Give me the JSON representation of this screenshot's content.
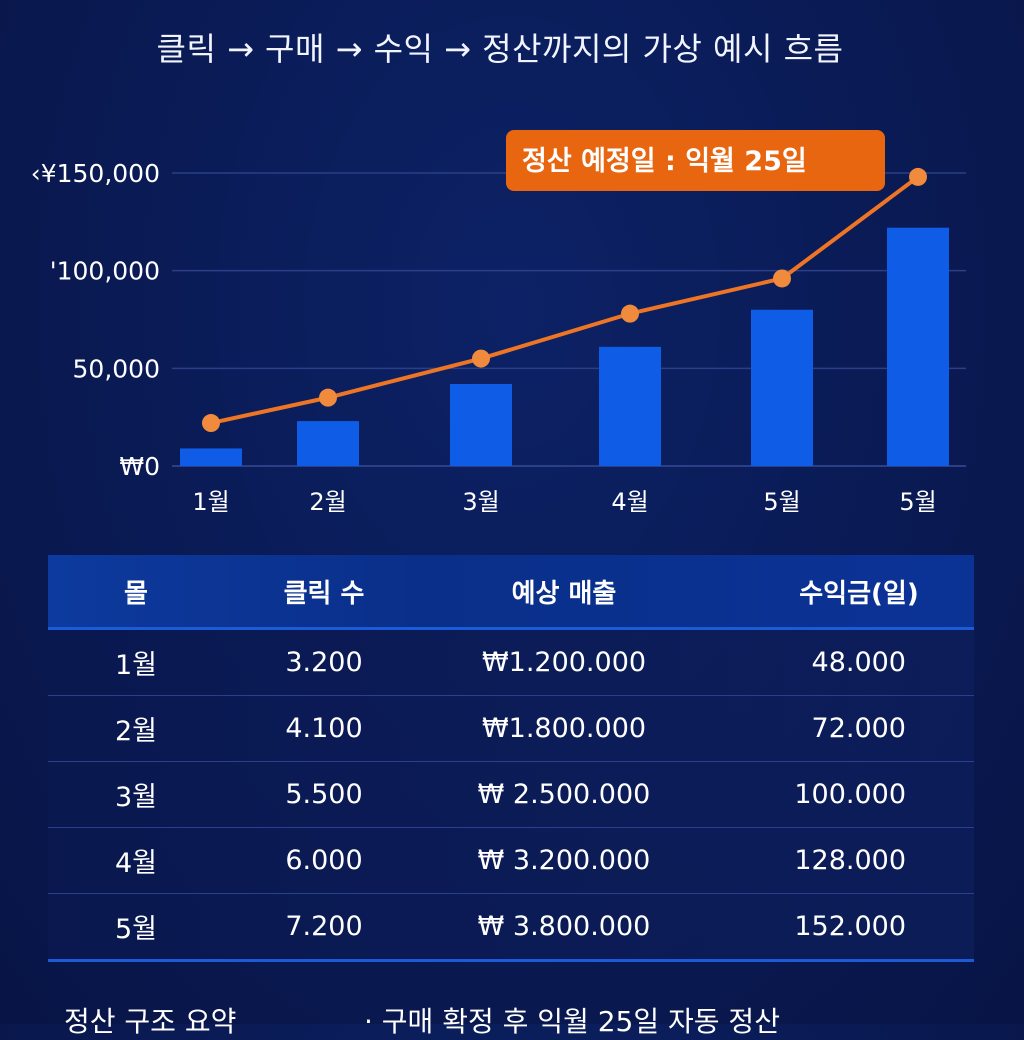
{
  "title": "클릭 → 구매 → 수익 →  정산까지의 가상 예시 흐름",
  "chart_data": {
    "type": "bar",
    "categories": [
      "1월",
      "2월",
      "3월",
      "4월",
      "5월",
      "5월"
    ],
    "series": [
      {
        "name": "bars",
        "type": "bar",
        "values": [
          9000,
          23000,
          42000,
          61000,
          80000,
          122000
        ]
      },
      {
        "name": "line",
        "type": "line",
        "values": [
          22000,
          35000,
          55000,
          78000,
          96000,
          148000
        ]
      }
    ],
    "y_ticks": [
      {
        "value": 150000,
        "label": "‹¥150,000"
      },
      {
        "value": 100000,
        "label": "'100,000"
      },
      {
        "value": 50000,
        "label": "50,000"
      },
      {
        "value": 0,
        "label": "₩0"
      }
    ],
    "ylim": [
      0,
      150000
    ],
    "callout": "정산 예정일 : 익월 25일",
    "colors": {
      "bar": "#0f5ce6",
      "line": "#ee7524",
      "callout": "#e8660f",
      "grid": "#2b3f86"
    }
  },
  "table": {
    "headers": [
      "몰",
      "클릭 수",
      "예상 매출",
      "수익금(일)"
    ],
    "rows": [
      [
        "1월",
        "3.200",
        "₩1.200.000",
        "48.000"
      ],
      [
        "2월",
        "4.100",
        "₩1.800.000",
        "72.000"
      ],
      [
        "3월",
        "5.500",
        "₩ 2.500.000",
        "100.000"
      ],
      [
        "4월",
        "6.000",
        "₩ 3.200.000",
        "128.000"
      ],
      [
        "5월",
        "7.200",
        "₩ 3.800.000",
        "152.000"
      ]
    ]
  },
  "footer": {
    "left": "정산 구조 요약",
    "right": "· 구매 확정 후 익월 25일 자동 정산"
  }
}
